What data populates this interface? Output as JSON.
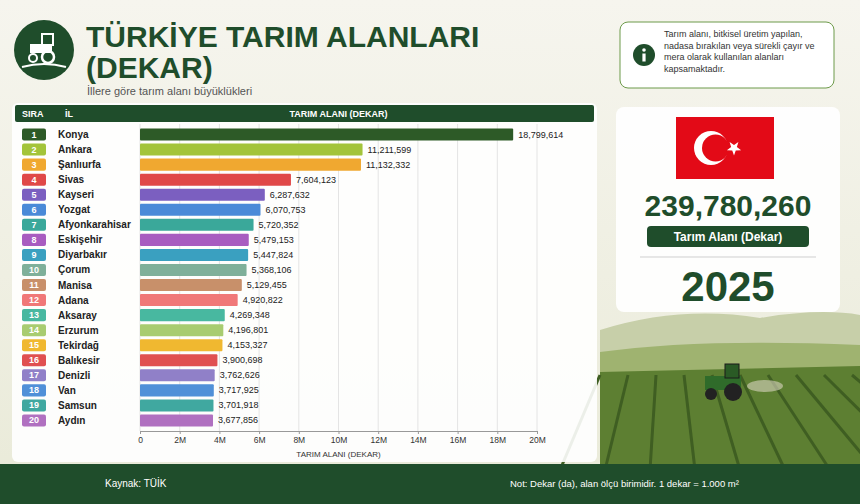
{
  "chart_data": {
    "type": "bar",
    "orientation": "horizontal",
    "title": "TÜRKİYE TARIM ALANLARI (DEKAR)",
    "subtitle": "İllere göre tarım alanı büyüklükleri",
    "column_headers": [
      "SIRA",
      "İL",
      "TARIM ALANI (DEKAR)"
    ],
    "ranks": [
      1,
      2,
      3,
      4,
      5,
      6,
      7,
      8,
      9,
      10,
      11,
      12,
      13,
      14,
      15,
      16,
      17,
      18,
      19,
      20
    ],
    "categories": [
      "Konya",
      "Ankara",
      "Şanlıurfa",
      "Sivas",
      "Kayseri",
      "Yozgat",
      "Afyonkarahisar",
      "Eskişehir",
      "Diyarbakır",
      "Çorum",
      "Manisa",
      "Adana",
      "Aksaray",
      "Erzurum",
      "Tekirdağ",
      "Balıkesir",
      "Denizli",
      "Van",
      "Samsun",
      "Aydın"
    ],
    "values": [
      18799614,
      11211599,
      11132332,
      7604123,
      6287632,
      6070753,
      5720352,
      5479153,
      5447824,
      5368106,
      5129455,
      4920822,
      4269348,
      4196801,
      4153327,
      3900698,
      3762626,
      3717925,
      3701918,
      3677856
    ],
    "value_labels": [
      "18,799,614",
      "11,211,599",
      "11,132,332",
      "7,604,123",
      "6,287,632",
      "6,070,753",
      "5,720,352",
      "5,479,153",
      "5,447,824",
      "5,368,106",
      "5,129,455",
      "4,920,822",
      "4,269,348",
      "4,196,801",
      "4,153,327",
      "3,900,698",
      "3,762,626",
      "3,717,925",
      "3,701,918",
      "3,677,856"
    ],
    "colors": [
      "#2d5a27",
      "#a3c43a",
      "#f0a830",
      "#e04848",
      "#7b5fc0",
      "#4a8ad8",
      "#3aa89a",
      "#a85cc0",
      "#3aa0c0",
      "#7fb09a",
      "#c8906a",
      "#f07878",
      "#48b8a0",
      "#a8cc70",
      "#f0b830",
      "#e05050",
      "#9080c8",
      "#5090d8",
      "#40a8a0",
      "#b070c0"
    ],
    "xlim": [
      0,
      20000000
    ],
    "xticks": [
      0,
      {
        "value": 2000000,
        "label": "2M"
      },
      {
        "value": 4000000,
        "label": "4M"
      },
      {
        "value": 6000000,
        "label": "6M"
      },
      {
        "value": 8000000,
        "label": "8M"
      },
      {
        "value": 10000000,
        "label": "10M"
      },
      {
        "value": 12000000,
        "label": "12M"
      },
      {
        "value": 14000000,
        "label": "14M"
      },
      {
        "value": 16000000,
        "label": "16M"
      },
      {
        "value": 18000000,
        "label": "18M"
      },
      {
        "value": 20000000,
        "label": "20M"
      }
    ],
    "x_label": "TARIM ALANI (DEKAR)",
    "grid": true,
    "data_labels": true
  },
  "info_note": "Tarım alanı, bitkisel üretim yapılan, nadasa bırakılan veya sürekli çayır ve mera olarak kullanılan alanları kapsamaktadır.",
  "summary": {
    "total": {
      "value": 239780260,
      "label": "239,780,260"
    },
    "total_caption": "Tarım Alanı (Dekar)",
    "year": 2025
  },
  "footer": {
    "source": "Kaynak: TÜİK",
    "note": "Not: Dekar (da), alan ölçü birimidir. 1 dekar = 1.000 m²"
  }
}
